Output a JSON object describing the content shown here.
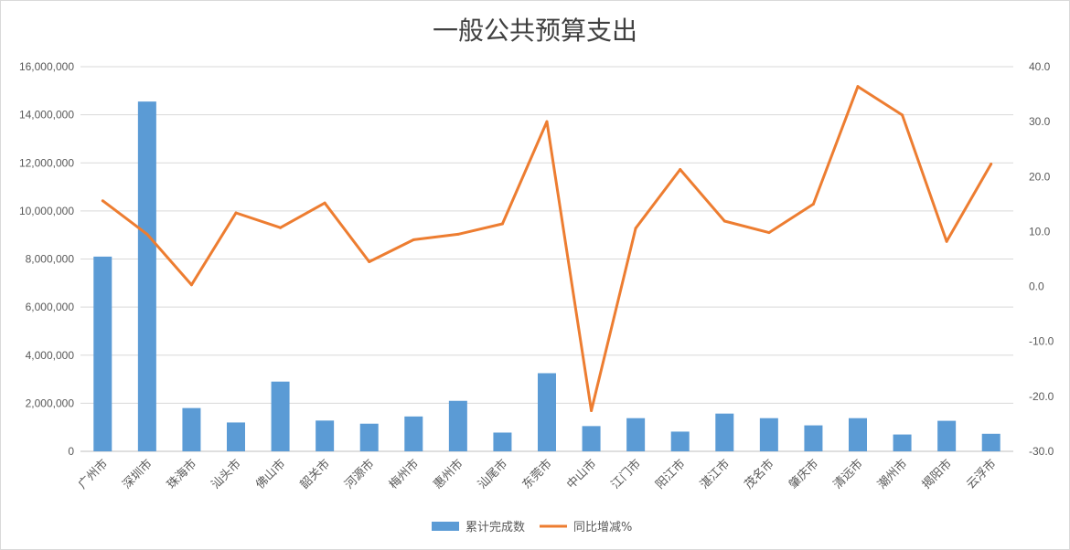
{
  "chart_data": {
    "type": "bar+line",
    "title": "一般公共预算支出",
    "categories": [
      "广州市",
      "深圳市",
      "珠海市",
      "汕头市",
      "佛山市",
      "韶关市",
      "河源市",
      "梅州市",
      "惠州市",
      "汕尾市",
      "东莞市",
      "中山市",
      "江门市",
      "阳江市",
      "湛江市",
      "茂名市",
      "肇庆市",
      "清远市",
      "潮州市",
      "揭阳市",
      "云浮市"
    ],
    "series": [
      {
        "name": "累计完成数",
        "type": "bar",
        "axis": "left",
        "color": "#5b9bd5",
        "values": [
          8100000,
          14550000,
          1800000,
          1200000,
          2900000,
          1280000,
          1150000,
          1450000,
          2100000,
          780000,
          3250000,
          1050000,
          1380000,
          820000,
          1570000,
          1380000,
          1080000,
          1380000,
          700000,
          1270000,
          730000
        ]
      },
      {
        "name": "同比增减%",
        "type": "line",
        "axis": "right",
        "color": "#ed7d31",
        "values": [
          15.6,
          9.5,
          0.3,
          13.4,
          10.7,
          15.2,
          4.5,
          8.5,
          9.5,
          11.4,
          30.0,
          -22.6,
          10.6,
          21.3,
          11.9,
          9.8,
          15.0,
          36.4,
          31.2,
          8.2,
          22.3
        ]
      }
    ],
    "y_left": {
      "min": 0,
      "max": 16000000,
      "step": 2000000,
      "tick_labels": [
        "0",
        "2,000,000",
        "4,000,000",
        "6,000,000",
        "8,000,000",
        "10,000,000",
        "12,000,000",
        "14,000,000",
        "16,000,000"
      ]
    },
    "y_right": {
      "min": -30,
      "max": 40,
      "step": 10,
      "tick_labels": [
        "-30.0",
        "-20.0",
        "-10.0",
        "0.0",
        "10.0",
        "20.0",
        "30.0",
        "40.0"
      ]
    },
    "grid": true,
    "legend_position": "bottom"
  }
}
